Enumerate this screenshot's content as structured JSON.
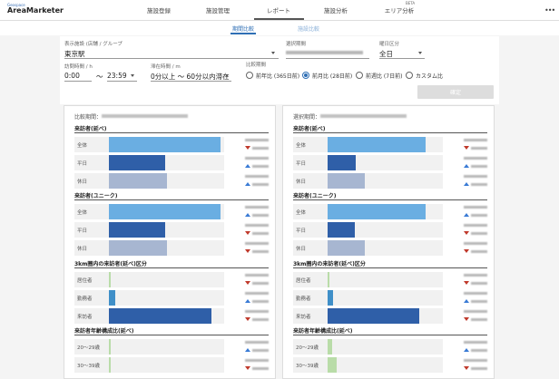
{
  "header": {
    "logo_small": "Geospace",
    "logo": "AreaMarketer",
    "nav": [
      "施設登録",
      "施設管理",
      "レポート",
      "施設分析",
      "エリア分析"
    ],
    "nav_badge": "BETA"
  },
  "tabs": [
    "期間比較",
    "施設比較"
  ],
  "filters": {
    "facility_label": "表示施設 (店舗 / グループ",
    "facility_value": "東京駅",
    "period_label": "選択期間",
    "weekday_label": "曜日区分",
    "weekday_value": "全日",
    "visit_label": "訪問時間 / h",
    "visit_from": "0:00",
    "visit_sep": "〜",
    "visit_to": "23:59",
    "stay_label": "滞在時間 / m",
    "stay_value": "0分以上 〜 60分以内滞在",
    "compare_label": "比較期間",
    "compare_options": [
      "前年比 (365日前)",
      "前月比 (28日前)",
      "前週比 (7日前)",
      "カスタム比"
    ],
    "compare_selected": "前月比 (28日前)",
    "confirm": "確定"
  },
  "panels": [
    {
      "title": "比較期間：",
      "sections": [
        {
          "title": "来訪者(延べ)",
          "rows": [
            {
              "label": "全体",
              "value": 100,
              "color": "#6aaee2"
            },
            {
              "label": "平日",
              "value": 50,
              "color": "#2f5fa8"
            },
            {
              "label": "休日",
              "value": 52,
              "color": "#a7b6d1"
            }
          ]
        },
        {
          "title": "来訪者(ユニーク)",
          "rows": [
            {
              "label": "全体",
              "value": 100,
              "color": "#6aaee2"
            },
            {
              "label": "平日",
              "value": 50,
              "color": "#2f5fa8"
            },
            {
              "label": "休日",
              "value": 52,
              "color": "#a7b6d1"
            }
          ]
        },
        {
          "title": "3km圏内の来訪者(延べ)区分",
          "rows": [
            {
              "label": "居住者",
              "value": 2,
              "color": "#b9dca8"
            },
            {
              "label": "勤務者",
              "value": 6,
              "color": "#3f8fc8"
            },
            {
              "label": "来訪者",
              "value": 92,
              "color": "#2f5fa8"
            }
          ]
        },
        {
          "title": "来訪者年齢構成比(延べ)",
          "rows": [
            {
              "label": "20〜29歳",
              "value": 2,
              "color": "#b9dca8"
            },
            {
              "label": "30〜39歳",
              "value": 2,
              "color": "#b9dca8"
            }
          ]
        }
      ]
    },
    {
      "title": "選択期間：",
      "sections": [
        {
          "title": "来訪者(延べ)",
          "rows": [
            {
              "label": "全体",
              "value": 88,
              "color": "#6aaee2"
            },
            {
              "label": "平日",
              "value": 25,
              "color": "#2f5fa8"
            },
            {
              "label": "休日",
              "value": 33,
              "color": "#a7b6d1"
            }
          ]
        },
        {
          "title": "来訪者(ユニーク)",
          "rows": [
            {
              "label": "全体",
              "value": 88,
              "color": "#6aaee2"
            },
            {
              "label": "平日",
              "value": 24,
              "color": "#2f5fa8"
            },
            {
              "label": "休日",
              "value": 33,
              "color": "#a7b6d1"
            }
          ]
        },
        {
          "title": "3km圏内の来訪者(延べ)区分",
          "rows": [
            {
              "label": "居住者",
              "value": 2,
              "color": "#b9dca8"
            },
            {
              "label": "勤務者",
              "value": 5,
              "color": "#3f8fc8"
            },
            {
              "label": "来訪者",
              "value": 82,
              "color": "#2f5fa8"
            }
          ]
        },
        {
          "title": "来訪者年齢構成比(延べ)",
          "rows": [
            {
              "label": "20〜29歳",
              "value": 4,
              "color": "#b9dca8"
            },
            {
              "label": "30〜39歳",
              "value": 8,
              "color": "#b9dca8"
            }
          ]
        }
      ]
    }
  ]
}
